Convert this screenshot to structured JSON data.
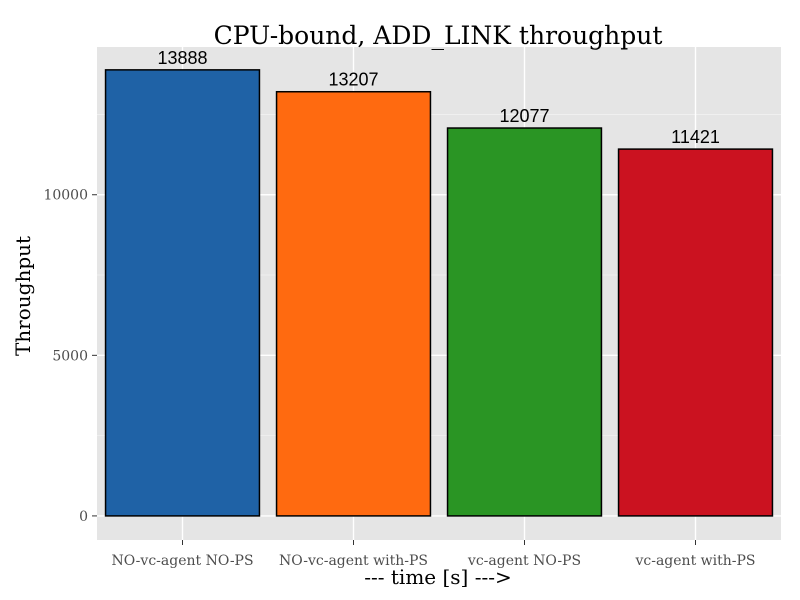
{
  "chart_data": {
    "type": "bar",
    "title": "CPU-bound, ADD_LINK throughput",
    "xlabel": "--- time [s] --->",
    "ylabel": "Throughput",
    "categories": [
      "NO-vc-agent NO-PS",
      "NO-vc-agent with-PS",
      "vc-agent NO-PS",
      "vc-agent with-PS"
    ],
    "values": [
      13888,
      13207,
      12077,
      11421
    ],
    "data_labels": [
      "13888",
      "13207",
      "12077",
      "11421"
    ],
    "colors": [
      "#1f62a6",
      "#ff6a10",
      "#2a9524",
      "#cb1220"
    ],
    "ylim": [
      -750,
      14600
    ],
    "yticks": [
      0,
      5000,
      10000
    ],
    "ytick_labels": [
      "0",
      "5000",
      "10000"
    ],
    "grid": true,
    "legend": "none",
    "panel_background": "#e5e5e5",
    "grid_color": "#ffffff"
  }
}
